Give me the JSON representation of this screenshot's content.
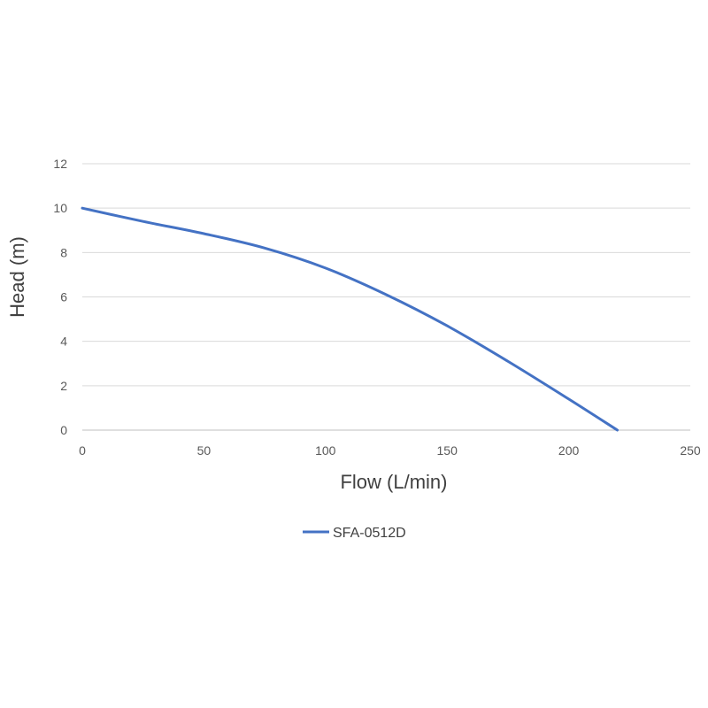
{
  "chart_data": {
    "type": "line",
    "xlabel": "Flow (L/min)",
    "ylabel": "Head (m)",
    "xlim": [
      0,
      250
    ],
    "ylim": [
      0,
      12
    ],
    "x_ticks": [
      0,
      50,
      100,
      150,
      200,
      250
    ],
    "y_ticks": [
      0,
      2,
      4,
      6,
      8,
      10,
      12
    ],
    "grid": "horizontal",
    "legend_position": "bottom",
    "series": [
      {
        "name": "SFA-0512D",
        "color": "#4472c4",
        "x": [
          0,
          25,
          50,
          75,
          100,
          125,
          150,
          175,
          200,
          220
        ],
        "y": [
          10,
          9.4,
          8.85,
          8.2,
          7.3,
          6.1,
          4.7,
          3.1,
          1.4,
          0
        ]
      }
    ]
  }
}
